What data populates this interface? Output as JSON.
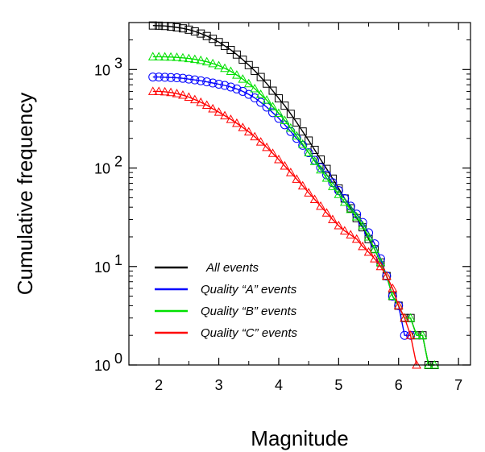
{
  "chart_data": {
    "type": "scatter",
    "xlabel": "Magnitude",
    "ylabel": "Cumulative frequency",
    "xlim": [
      1.5,
      7.2
    ],
    "ylim": [
      1,
      3000
    ],
    "yscale": "log",
    "x_ticks": [
      2,
      3,
      4,
      5,
      6,
      7
    ],
    "x_tick_labels": [
      "2",
      "3",
      "4",
      "5",
      "6",
      "7"
    ],
    "y_ticks": [
      1,
      10,
      100,
      1000
    ],
    "y_tick_mantissa": [
      "10",
      "10",
      "10",
      "10"
    ],
    "y_tick_exponents": [
      "0",
      "1",
      "2",
      "3"
    ],
    "grid": false,
    "legend_placement": "bottom-left",
    "series": [
      {
        "name": "All events",
        "color": "#000000",
        "marker": "square",
        "x": [
          1.9,
          2.0,
          2.1,
          2.2,
          2.3,
          2.4,
          2.5,
          2.6,
          2.7,
          2.8,
          2.9,
          3.0,
          3.1,
          3.2,
          3.3,
          3.4,
          3.5,
          3.6,
          3.7,
          3.8,
          3.9,
          4.0,
          4.1,
          4.2,
          4.3,
          4.4,
          4.5,
          4.6,
          4.7,
          4.8,
          4.9,
          5.0,
          5.1,
          5.2,
          5.3,
          5.4,
          5.5,
          5.6,
          5.7,
          5.8,
          5.9,
          6.0,
          6.1,
          6.2,
          6.3,
          6.4,
          6.5,
          6.6
        ],
        "values": [
          2800,
          2790,
          2770,
          2730,
          2680,
          2620,
          2540,
          2440,
          2320,
          2190,
          2050,
          1900,
          1740,
          1580,
          1420,
          1260,
          1110,
          970,
          840,
          720,
          610,
          510,
          430,
          355,
          290,
          235,
          190,
          153,
          122,
          98,
          78,
          62,
          49,
          39,
          31,
          25,
          19,
          15,
          11,
          8,
          5,
          4,
          3,
          3,
          2,
          2,
          1,
          1
        ]
      },
      {
        "name": "Quality “A” events",
        "color": "#0000ff",
        "marker": "circle",
        "x": [
          1.9,
          2.0,
          2.1,
          2.2,
          2.3,
          2.4,
          2.5,
          2.6,
          2.7,
          2.8,
          2.9,
          3.0,
          3.1,
          3.2,
          3.3,
          3.4,
          3.5,
          3.6,
          3.7,
          3.8,
          3.9,
          4.0,
          4.1,
          4.2,
          4.3,
          4.4,
          4.5,
          4.6,
          4.7,
          4.8,
          4.9,
          5.0,
          5.1,
          5.2,
          5.3,
          5.4,
          5.5,
          5.6,
          5.7,
          5.8,
          5.9,
          6.0,
          6.1,
          6.2
        ],
        "values": [
          840,
          840,
          835,
          830,
          825,
          815,
          800,
          785,
          770,
          750,
          730,
          710,
          690,
          665,
          635,
          600,
          560,
          515,
          465,
          415,
          365,
          320,
          275,
          235,
          200,
          170,
          143,
          120,
          101,
          85,
          71,
          59,
          49,
          41,
          34,
          28,
          22,
          17,
          12,
          8,
          5,
          4,
          2,
          2
        ]
      },
      {
        "name": "Quality “B” events",
        "color": "#00e000",
        "marker": "triangle",
        "x": [
          1.9,
          2.0,
          2.1,
          2.2,
          2.3,
          2.4,
          2.5,
          2.6,
          2.7,
          2.8,
          2.9,
          3.0,
          3.1,
          3.2,
          3.3,
          3.4,
          3.5,
          3.6,
          3.7,
          3.8,
          3.9,
          4.0,
          4.1,
          4.2,
          4.3,
          4.4,
          4.5,
          4.6,
          4.7,
          4.8,
          4.9,
          5.0,
          5.1,
          5.2,
          5.3,
          5.4,
          5.5,
          5.6,
          5.7,
          5.8,
          5.9,
          6.0,
          6.1,
          6.2,
          6.3,
          6.4,
          6.5,
          6.6
        ],
        "values": [
          1350,
          1350,
          1345,
          1340,
          1330,
          1315,
          1295,
          1270,
          1240,
          1200,
          1150,
          1095,
          1030,
          960,
          880,
          800,
          720,
          640,
          560,
          490,
          420,
          360,
          305,
          255,
          212,
          175,
          143,
          117,
          96,
          79,
          65,
          54,
          45,
          38,
          32,
          26,
          20,
          15,
          11,
          8,
          5,
          4,
          3,
          3,
          2,
          2,
          1,
          1
        ]
      },
      {
        "name": "Quality “C” events",
        "color": "#ff0000",
        "marker": "triangle",
        "x": [
          1.9,
          2.0,
          2.1,
          2.2,
          2.3,
          2.4,
          2.5,
          2.6,
          2.7,
          2.8,
          2.9,
          3.0,
          3.1,
          3.2,
          3.3,
          3.4,
          3.5,
          3.6,
          3.7,
          3.8,
          3.9,
          4.0,
          4.1,
          4.2,
          4.3,
          4.4,
          4.5,
          4.6,
          4.7,
          4.8,
          4.9,
          5.0,
          5.1,
          5.2,
          5.3,
          5.4,
          5.5,
          5.6,
          5.7,
          5.8,
          5.9,
          6.0,
          6.1,
          6.2,
          6.3
        ],
        "values": [
          600,
          600,
          595,
          585,
          570,
          550,
          525,
          495,
          465,
          435,
          400,
          370,
          340,
          312,
          285,
          258,
          233,
          208,
          184,
          162,
          141,
          122,
          105,
          90,
          77,
          66,
          56,
          48,
          41,
          35,
          30,
          26,
          23,
          21,
          19,
          16,
          14,
          12,
          10,
          8,
          6,
          4,
          3,
          2,
          1
        ]
      }
    ]
  }
}
